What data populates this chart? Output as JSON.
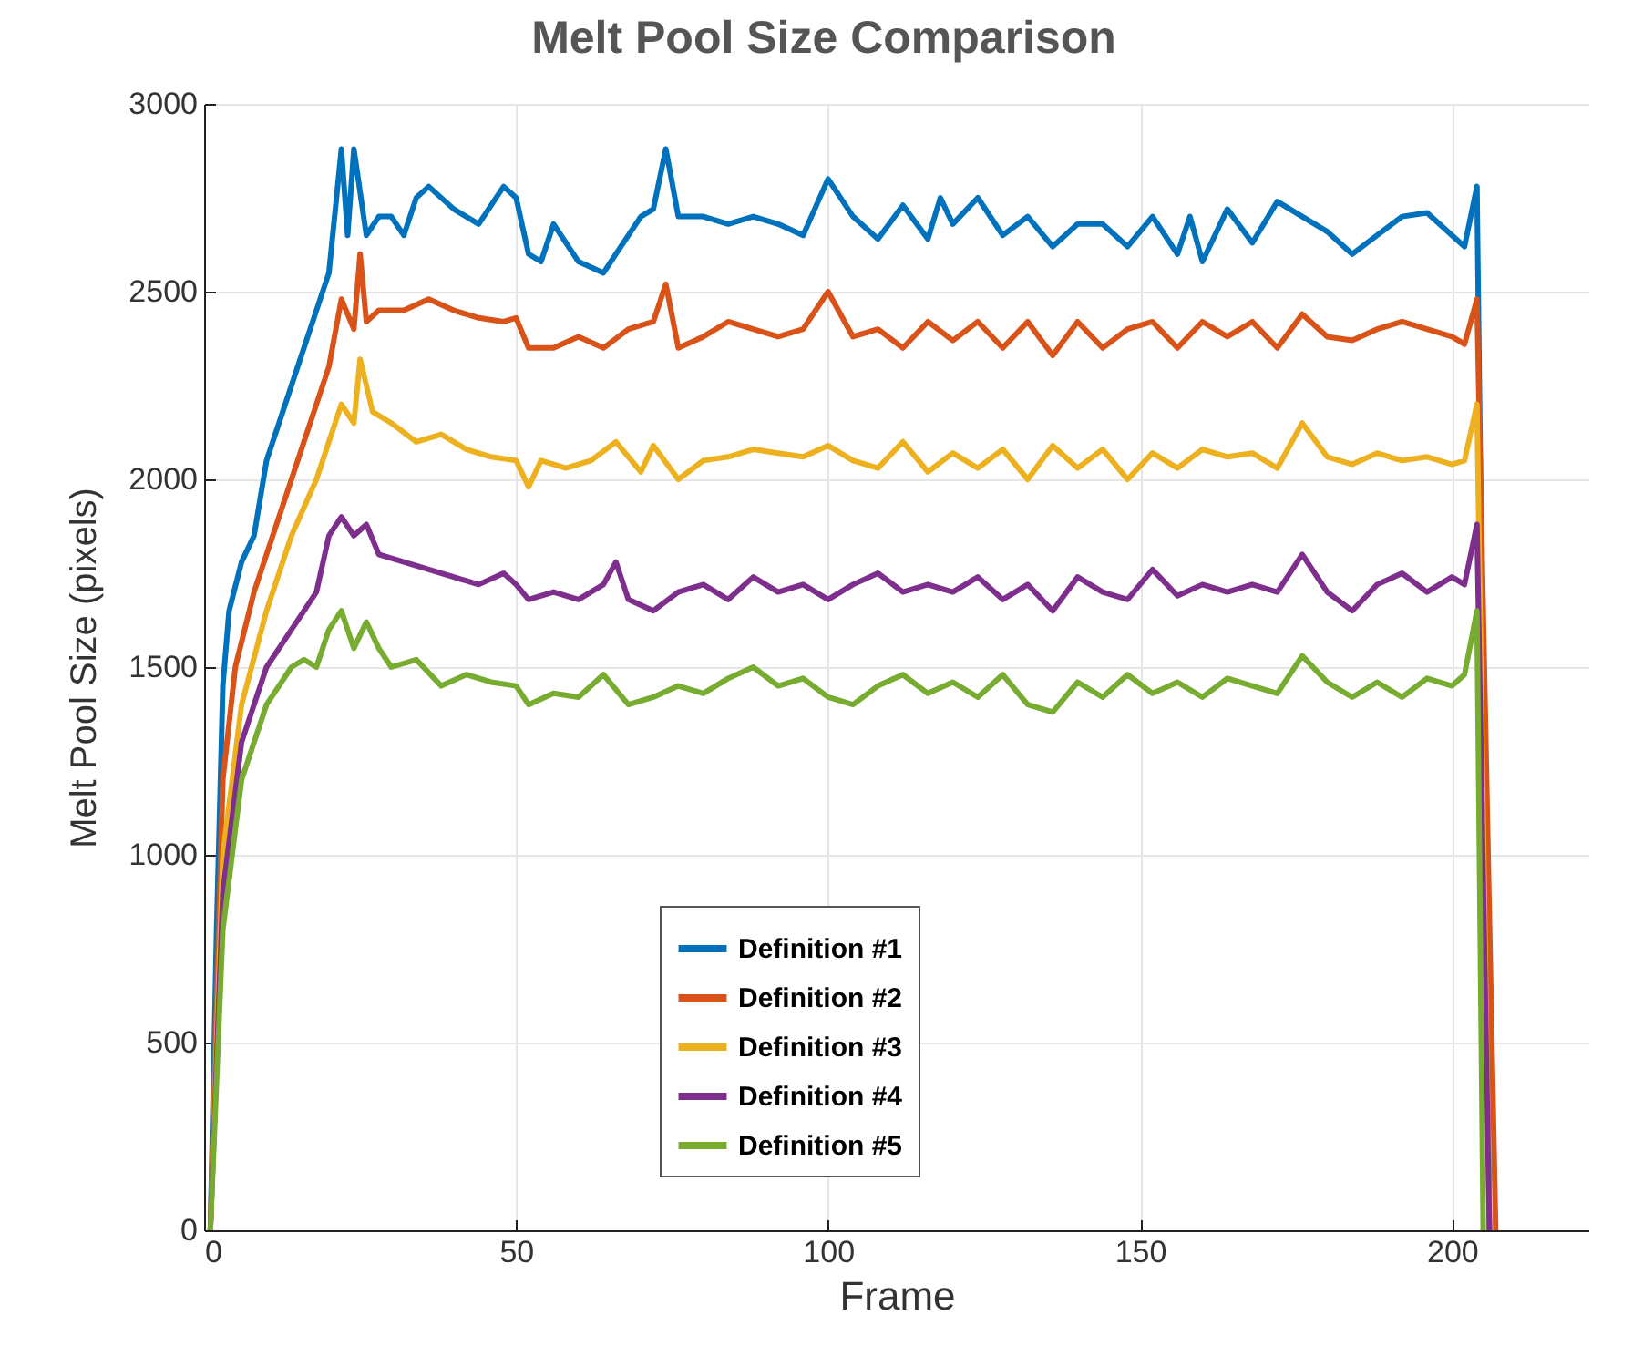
{
  "chart_data": {
    "type": "line",
    "title": "Melt Pool Size Comparison",
    "xlabel": "Frame",
    "ylabel": "Melt Pool Size (pixels)",
    "xlim": [
      0,
      222
    ],
    "ylim": [
      0,
      3000
    ],
    "xticks": [
      0,
      50,
      100,
      150,
      200
    ],
    "yticks": [
      0,
      500,
      1000,
      1500,
      2000,
      2500,
      3000
    ],
    "grid": true,
    "legend": "bottom",
    "series": [
      {
        "name": "Definition #1",
        "color": "#0072bd",
        "x": [
          1,
          2,
          3,
          4,
          6,
          8,
          10,
          12,
          14,
          16,
          18,
          20,
          22,
          23,
          24,
          26,
          28,
          30,
          32,
          34,
          36,
          40,
          44,
          48,
          50,
          52,
          54,
          56,
          60,
          64,
          68,
          70,
          72,
          74,
          76,
          80,
          84,
          88,
          92,
          96,
          100,
          104,
          108,
          112,
          116,
          118,
          120,
          124,
          128,
          132,
          136,
          140,
          144,
          148,
          152,
          156,
          158,
          160,
          164,
          168,
          172,
          176,
          180,
          184,
          188,
          192,
          196,
          200,
          202,
          204,
          206
        ],
        "values": [
          0,
          800,
          1450,
          1650,
          1780,
          1850,
          2050,
          2150,
          2250,
          2350,
          2450,
          2550,
          2880,
          2650,
          2880,
          2650,
          2700,
          2700,
          2650,
          2750,
          2780,
          2720,
          2680,
          2780,
          2750,
          2600,
          2580,
          2680,
          2580,
          2550,
          2650,
          2700,
          2720,
          2880,
          2700,
          2700,
          2680,
          2700,
          2680,
          2650,
          2800,
          2700,
          2640,
          2730,
          2640,
          2750,
          2680,
          2750,
          2650,
          2700,
          2620,
          2680,
          2680,
          2620,
          2700,
          2600,
          2700,
          2580,
          2720,
          2630,
          2740,
          2700,
          2660,
          2600,
          2650,
          2700,
          2710,
          2650,
          2620,
          2780,
          0
        ]
      },
      {
        "name": "Definition #2",
        "color": "#d95319",
        "x": [
          1,
          3,
          5,
          8,
          10,
          12,
          14,
          16,
          18,
          20,
          22,
          24,
          25,
          26,
          28,
          32,
          36,
          40,
          44,
          48,
          50,
          52,
          56,
          60,
          64,
          68,
          72,
          74,
          76,
          80,
          84,
          88,
          92,
          96,
          100,
          104,
          108,
          112,
          116,
          120,
          124,
          128,
          132,
          136,
          140,
          144,
          148,
          152,
          156,
          160,
          164,
          168,
          172,
          176,
          180,
          184,
          188,
          192,
          196,
          200,
          202,
          204,
          207
        ],
        "values": [
          0,
          1200,
          1500,
          1700,
          1800,
          1900,
          2000,
          2100,
          2200,
          2300,
          2480,
          2400,
          2600,
          2420,
          2450,
          2450,
          2480,
          2450,
          2430,
          2420,
          2430,
          2350,
          2350,
          2380,
          2350,
          2400,
          2420,
          2520,
          2350,
          2380,
          2420,
          2400,
          2380,
          2400,
          2500,
          2380,
          2400,
          2350,
          2420,
          2370,
          2420,
          2350,
          2420,
          2330,
          2420,
          2350,
          2400,
          2420,
          2350,
          2420,
          2380,
          2420,
          2350,
          2440,
          2380,
          2370,
          2400,
          2420,
          2400,
          2380,
          2360,
          2480,
          0
        ]
      },
      {
        "name": "Definition #3",
        "color": "#edb120",
        "x": [
          1,
          3,
          6,
          10,
          14,
          18,
          20,
          22,
          24,
          25,
          27,
          30,
          34,
          38,
          42,
          46,
          50,
          52,
          54,
          58,
          62,
          66,
          70,
          72,
          76,
          80,
          84,
          88,
          92,
          96,
          100,
          104,
          108,
          112,
          116,
          120,
          124,
          128,
          132,
          136,
          140,
          144,
          148,
          152,
          156,
          160,
          164,
          168,
          172,
          176,
          180,
          184,
          188,
          192,
          196,
          200,
          202,
          204,
          206
        ],
        "values": [
          0,
          1000,
          1400,
          1650,
          1850,
          2000,
          2100,
          2200,
          2150,
          2320,
          2180,
          2150,
          2100,
          2120,
          2080,
          2060,
          2050,
          1980,
          2050,
          2030,
          2050,
          2100,
          2020,
          2090,
          2000,
          2050,
          2060,
          2080,
          2070,
          2060,
          2090,
          2050,
          2030,
          2100,
          2020,
          2070,
          2030,
          2080,
          2000,
          2090,
          2030,
          2080,
          2000,
          2070,
          2030,
          2080,
          2060,
          2070,
          2030,
          2150,
          2060,
          2040,
          2070,
          2050,
          2060,
          2040,
          2050,
          2200,
          0
        ]
      },
      {
        "name": "Definition #4",
        "color": "#7e2f8e",
        "x": [
          1,
          3,
          6,
          10,
          14,
          18,
          20,
          22,
          24,
          26,
          28,
          32,
          36,
          40,
          44,
          48,
          50,
          52,
          56,
          60,
          64,
          66,
          68,
          72,
          76,
          80,
          84,
          88,
          92,
          96,
          100,
          104,
          108,
          112,
          116,
          120,
          124,
          128,
          132,
          136,
          140,
          144,
          148,
          152,
          156,
          160,
          164,
          168,
          172,
          176,
          180,
          184,
          188,
          192,
          196,
          200,
          202,
          204,
          206
        ],
        "values": [
          0,
          900,
          1300,
          1500,
          1600,
          1700,
          1850,
          1900,
          1850,
          1880,
          1800,
          1780,
          1760,
          1740,
          1720,
          1750,
          1720,
          1680,
          1700,
          1680,
          1720,
          1780,
          1680,
          1650,
          1700,
          1720,
          1680,
          1740,
          1700,
          1720,
          1680,
          1720,
          1750,
          1700,
          1720,
          1700,
          1740,
          1680,
          1720,
          1650,
          1740,
          1700,
          1680,
          1760,
          1690,
          1720,
          1700,
          1720,
          1700,
          1800,
          1700,
          1650,
          1720,
          1750,
          1700,
          1740,
          1720,
          1880,
          0
        ]
      },
      {
        "name": "Definition #5",
        "color": "#77ac30",
        "x": [
          1,
          3,
          6,
          10,
          14,
          16,
          18,
          20,
          22,
          24,
          26,
          28,
          30,
          34,
          38,
          42,
          46,
          50,
          52,
          56,
          60,
          64,
          68,
          72,
          76,
          80,
          84,
          88,
          92,
          96,
          100,
          104,
          108,
          112,
          116,
          120,
          124,
          128,
          132,
          136,
          140,
          144,
          148,
          152,
          156,
          160,
          164,
          168,
          172,
          176,
          180,
          184,
          188,
          192,
          196,
          200,
          202,
          204,
          205
        ],
        "values": [
          0,
          800,
          1200,
          1400,
          1500,
          1520,
          1500,
          1600,
          1650,
          1550,
          1620,
          1550,
          1500,
          1520,
          1450,
          1480,
          1460,
          1450,
          1400,
          1430,
          1420,
          1480,
          1400,
          1420,
          1450,
          1430,
          1470,
          1500,
          1450,
          1470,
          1420,
          1400,
          1450,
          1480,
          1430,
          1460,
          1420,
          1480,
          1400,
          1380,
          1460,
          1420,
          1480,
          1430,
          1460,
          1420,
          1470,
          1450,
          1430,
          1530,
          1460,
          1420,
          1460,
          1420,
          1470,
          1450,
          1480,
          1650,
          0
        ]
      }
    ]
  }
}
